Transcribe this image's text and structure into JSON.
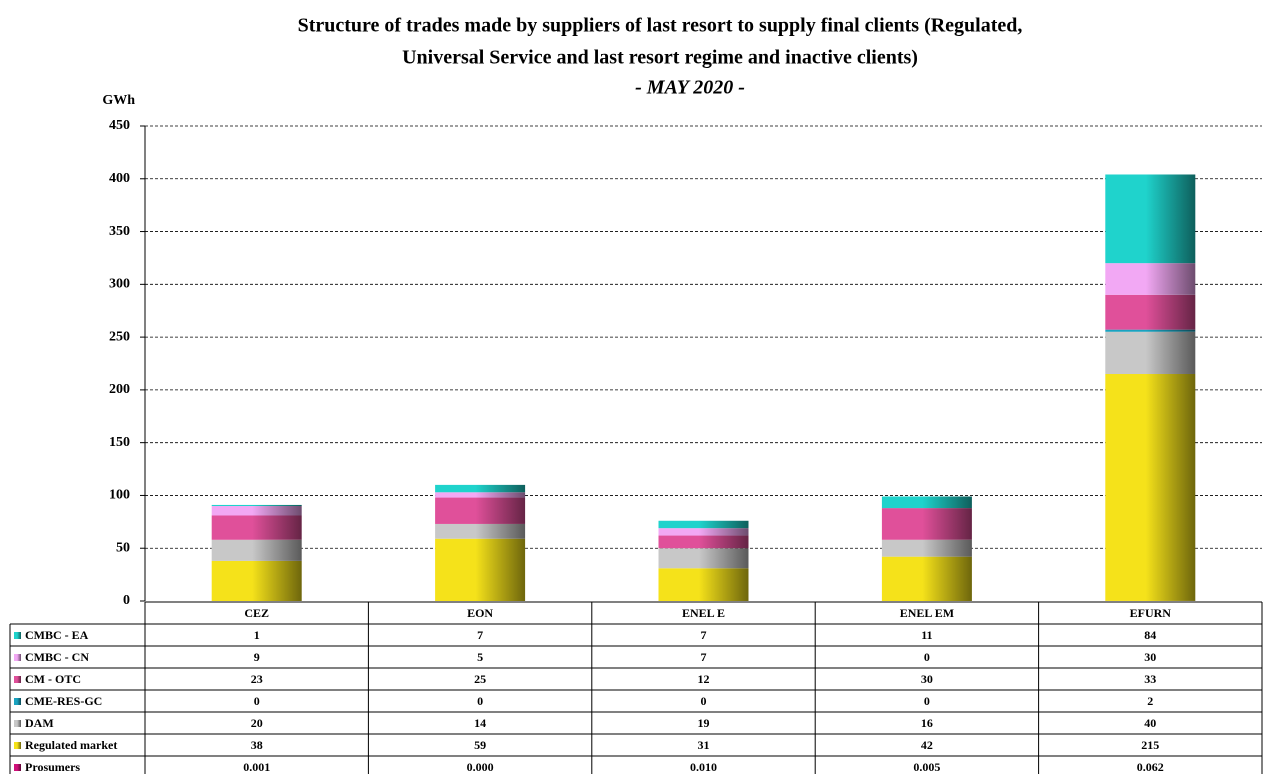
{
  "chart_data": {
    "type": "stacked_bar",
    "title": [
      "Structure of trades made by suppliers of last resort to supply final clients (Regulated,",
      "Universal Service and last resort regime and inactive clients)"
    ],
    "subtitle": "- MAY 2020 -",
    "y_label": "GWh",
    "categories": [
      "CEZ",
      "EON",
      "ENEL E",
      "ENEL EM",
      "EFURN"
    ],
    "series": [
      {
        "name": "CMBC - EA",
        "color": "#1fd3cc",
        "values": [
          1,
          7,
          7,
          11,
          84
        ]
      },
      {
        "name": "CMBC - CN",
        "color": "#f2a8f4",
        "values": [
          9,
          5,
          7,
          0,
          30
        ]
      },
      {
        "name": "CM - OTC",
        "color": "#e0509a",
        "values": [
          23,
          25,
          12,
          30,
          33
        ]
      },
      {
        "name": "CME-RES-GC",
        "color": "#1aa3c0",
        "values": [
          0,
          0,
          0,
          0,
          2
        ]
      },
      {
        "name": "DAM",
        "color": "#c8c8c8",
        "values": [
          20,
          14,
          19,
          16,
          40
        ]
      },
      {
        "name": "Regulated market",
        "color": "#f5e21a",
        "values": [
          38,
          59,
          31,
          42,
          215
        ]
      },
      {
        "name": "Prosumers",
        "color": "#d0107a",
        "values": [
          0.001,
          0.0,
          0.01,
          0.005,
          0.062
        ],
        "value_labels": [
          "0.001",
          "0.000",
          "0.010",
          "0.005",
          "0.062"
        ]
      }
    ],
    "ylim": [
      0,
      450
    ],
    "yticks": [
      0,
      50,
      100,
      150,
      200,
      250,
      300,
      350,
      400,
      450
    ],
    "grid": true
  }
}
